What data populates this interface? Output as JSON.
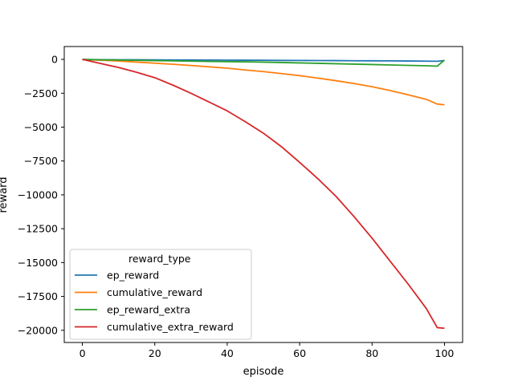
{
  "chart_data": {
    "type": "line",
    "title": "",
    "xlabel": "episode",
    "ylabel": "reward",
    "xlim": [
      -5,
      105
    ],
    "ylim": [
      -20900,
      950
    ],
    "x_ticks": [
      0,
      20,
      40,
      60,
      80,
      100
    ],
    "y_ticks": [
      0,
      -2500,
      -5000,
      -7500,
      -10000,
      -12500,
      -15000,
      -17500,
      -20000
    ],
    "grid": false,
    "legend": {
      "title": "reward_type",
      "placement": "lower-left"
    },
    "x": [
      0,
      5,
      10,
      15,
      20,
      25,
      30,
      35,
      40,
      45,
      50,
      55,
      60,
      65,
      70,
      75,
      80,
      85,
      90,
      95,
      98,
      100
    ],
    "series": [
      {
        "name": "ep_reward",
        "color": "#1f77b4",
        "values": [
          -10,
          -20,
          -25,
          -30,
          -35,
          -40,
          -45,
          -50,
          -55,
          -60,
          -65,
          -75,
          -80,
          -85,
          -90,
          -100,
          -105,
          -110,
          -120,
          -130,
          -140,
          -90
        ]
      },
      {
        "name": "cumulative_reward",
        "color": "#ff7f0e",
        "values": [
          -10,
          -60,
          -120,
          -200,
          -280,
          -360,
          -450,
          -550,
          -650,
          -780,
          -900,
          -1050,
          -1200,
          -1380,
          -1570,
          -1780,
          -2020,
          -2300,
          -2620,
          -2950,
          -3300,
          -3350
        ]
      },
      {
        "name": "ep_reward_extra",
        "color": "#2ca02c",
        "values": [
          -10,
          -30,
          -50,
          -70,
          -90,
          -110,
          -130,
          -150,
          -165,
          -180,
          -200,
          -230,
          -260,
          -290,
          -320,
          -350,
          -380,
          -410,
          -440,
          -470,
          -500,
          -50
        ]
      },
      {
        "name": "cumulative_extra_reward",
        "color": "#d62728",
        "values": [
          0,
          -300,
          -600,
          -950,
          -1350,
          -1900,
          -2500,
          -3150,
          -3800,
          -4600,
          -5450,
          -6450,
          -7600,
          -8800,
          -10100,
          -11600,
          -13200,
          -14900,
          -16600,
          -18400,
          -19800,
          -19850
        ]
      }
    ]
  }
}
